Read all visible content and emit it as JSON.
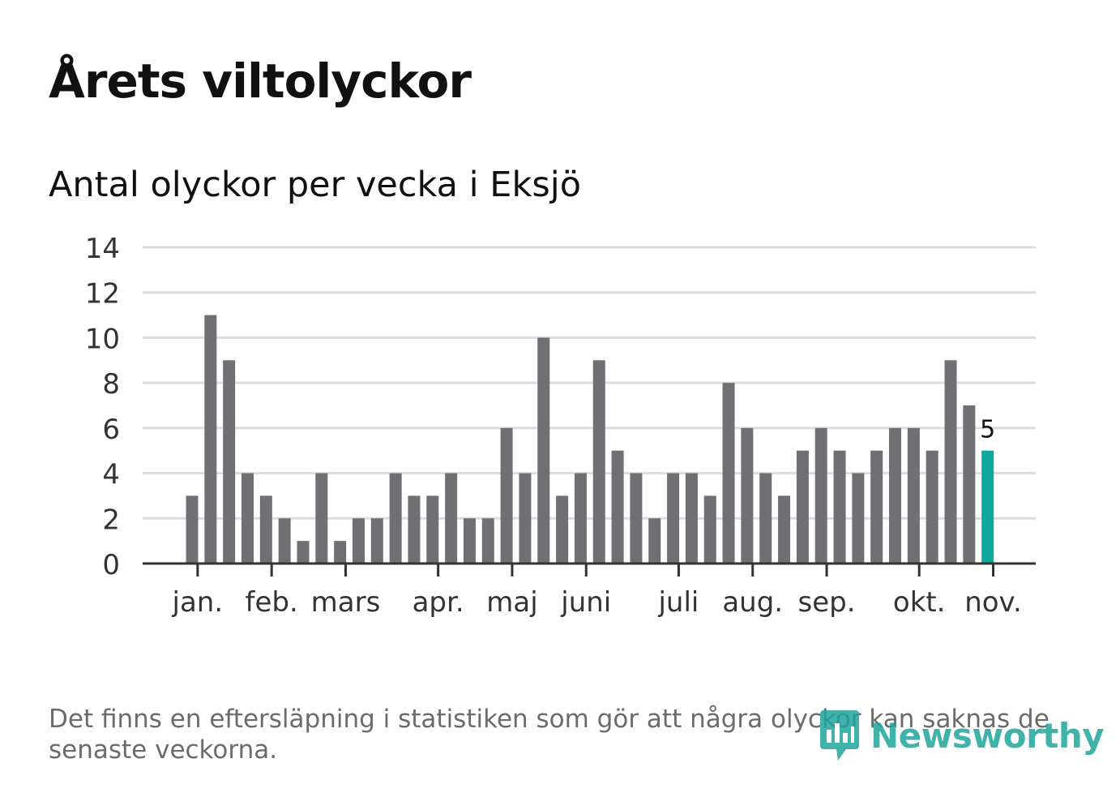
{
  "title": "Årets viltolyckor",
  "subtitle": "Antal olyckor per vecka i Eksjö",
  "footnote": "Det finns en eftersläpning i statistiken som gör att några olyckor kan saknas de senaste veckorna.",
  "logo": {
    "text": "Newsworthy",
    "icon": "newsworthy-logo-icon"
  },
  "colors": {
    "bar": "#706f74",
    "highlight": "#11a89c",
    "grid": "#dcdcdc",
    "axis": "#333333"
  },
  "chart_data": {
    "type": "bar",
    "title": "Antal olyckor per vecka i Eksjö",
    "xlabel": "",
    "ylabel": "",
    "ylim": [
      0,
      14
    ],
    "yticks": [
      0,
      2,
      4,
      6,
      8,
      10,
      12,
      14
    ],
    "grid": true,
    "weeks": [
      1,
      2,
      3,
      4,
      5,
      6,
      7,
      8,
      9,
      10,
      11,
      12,
      13,
      14,
      15,
      16,
      17,
      18,
      19,
      20,
      21,
      22,
      23,
      24,
      25,
      26,
      27,
      28,
      29,
      30,
      31,
      32,
      33,
      34,
      35,
      36,
      37,
      38,
      39,
      40,
      41,
      42,
      43,
      44
    ],
    "values": [
      3,
      11,
      9,
      4,
      3,
      2,
      1,
      4,
      1,
      2,
      2,
      4,
      3,
      3,
      4,
      2,
      2,
      6,
      4,
      10,
      3,
      4,
      9,
      5,
      4,
      2,
      4,
      4,
      3,
      8,
      6,
      4,
      3,
      5,
      6,
      5,
      4,
      5,
      6,
      6,
      5,
      9,
      7,
      5
    ],
    "highlight_index": 43,
    "highlight_label": "5",
    "month_labels": [
      {
        "label": "jan.",
        "week": 1.3
      },
      {
        "label": "feb.",
        "week": 5.3
      },
      {
        "label": "mars",
        "week": 9.3
      },
      {
        "label": "apr.",
        "week": 14.3
      },
      {
        "label": "maj",
        "week": 18.3
      },
      {
        "label": "juni",
        "week": 22.3
      },
      {
        "label": "juli",
        "week": 27.3
      },
      {
        "label": "aug.",
        "week": 31.3
      },
      {
        "label": "sep.",
        "week": 35.3
      },
      {
        "label": "okt.",
        "week": 40.3
      },
      {
        "label": "nov.",
        "week": 44.3
      }
    ]
  }
}
